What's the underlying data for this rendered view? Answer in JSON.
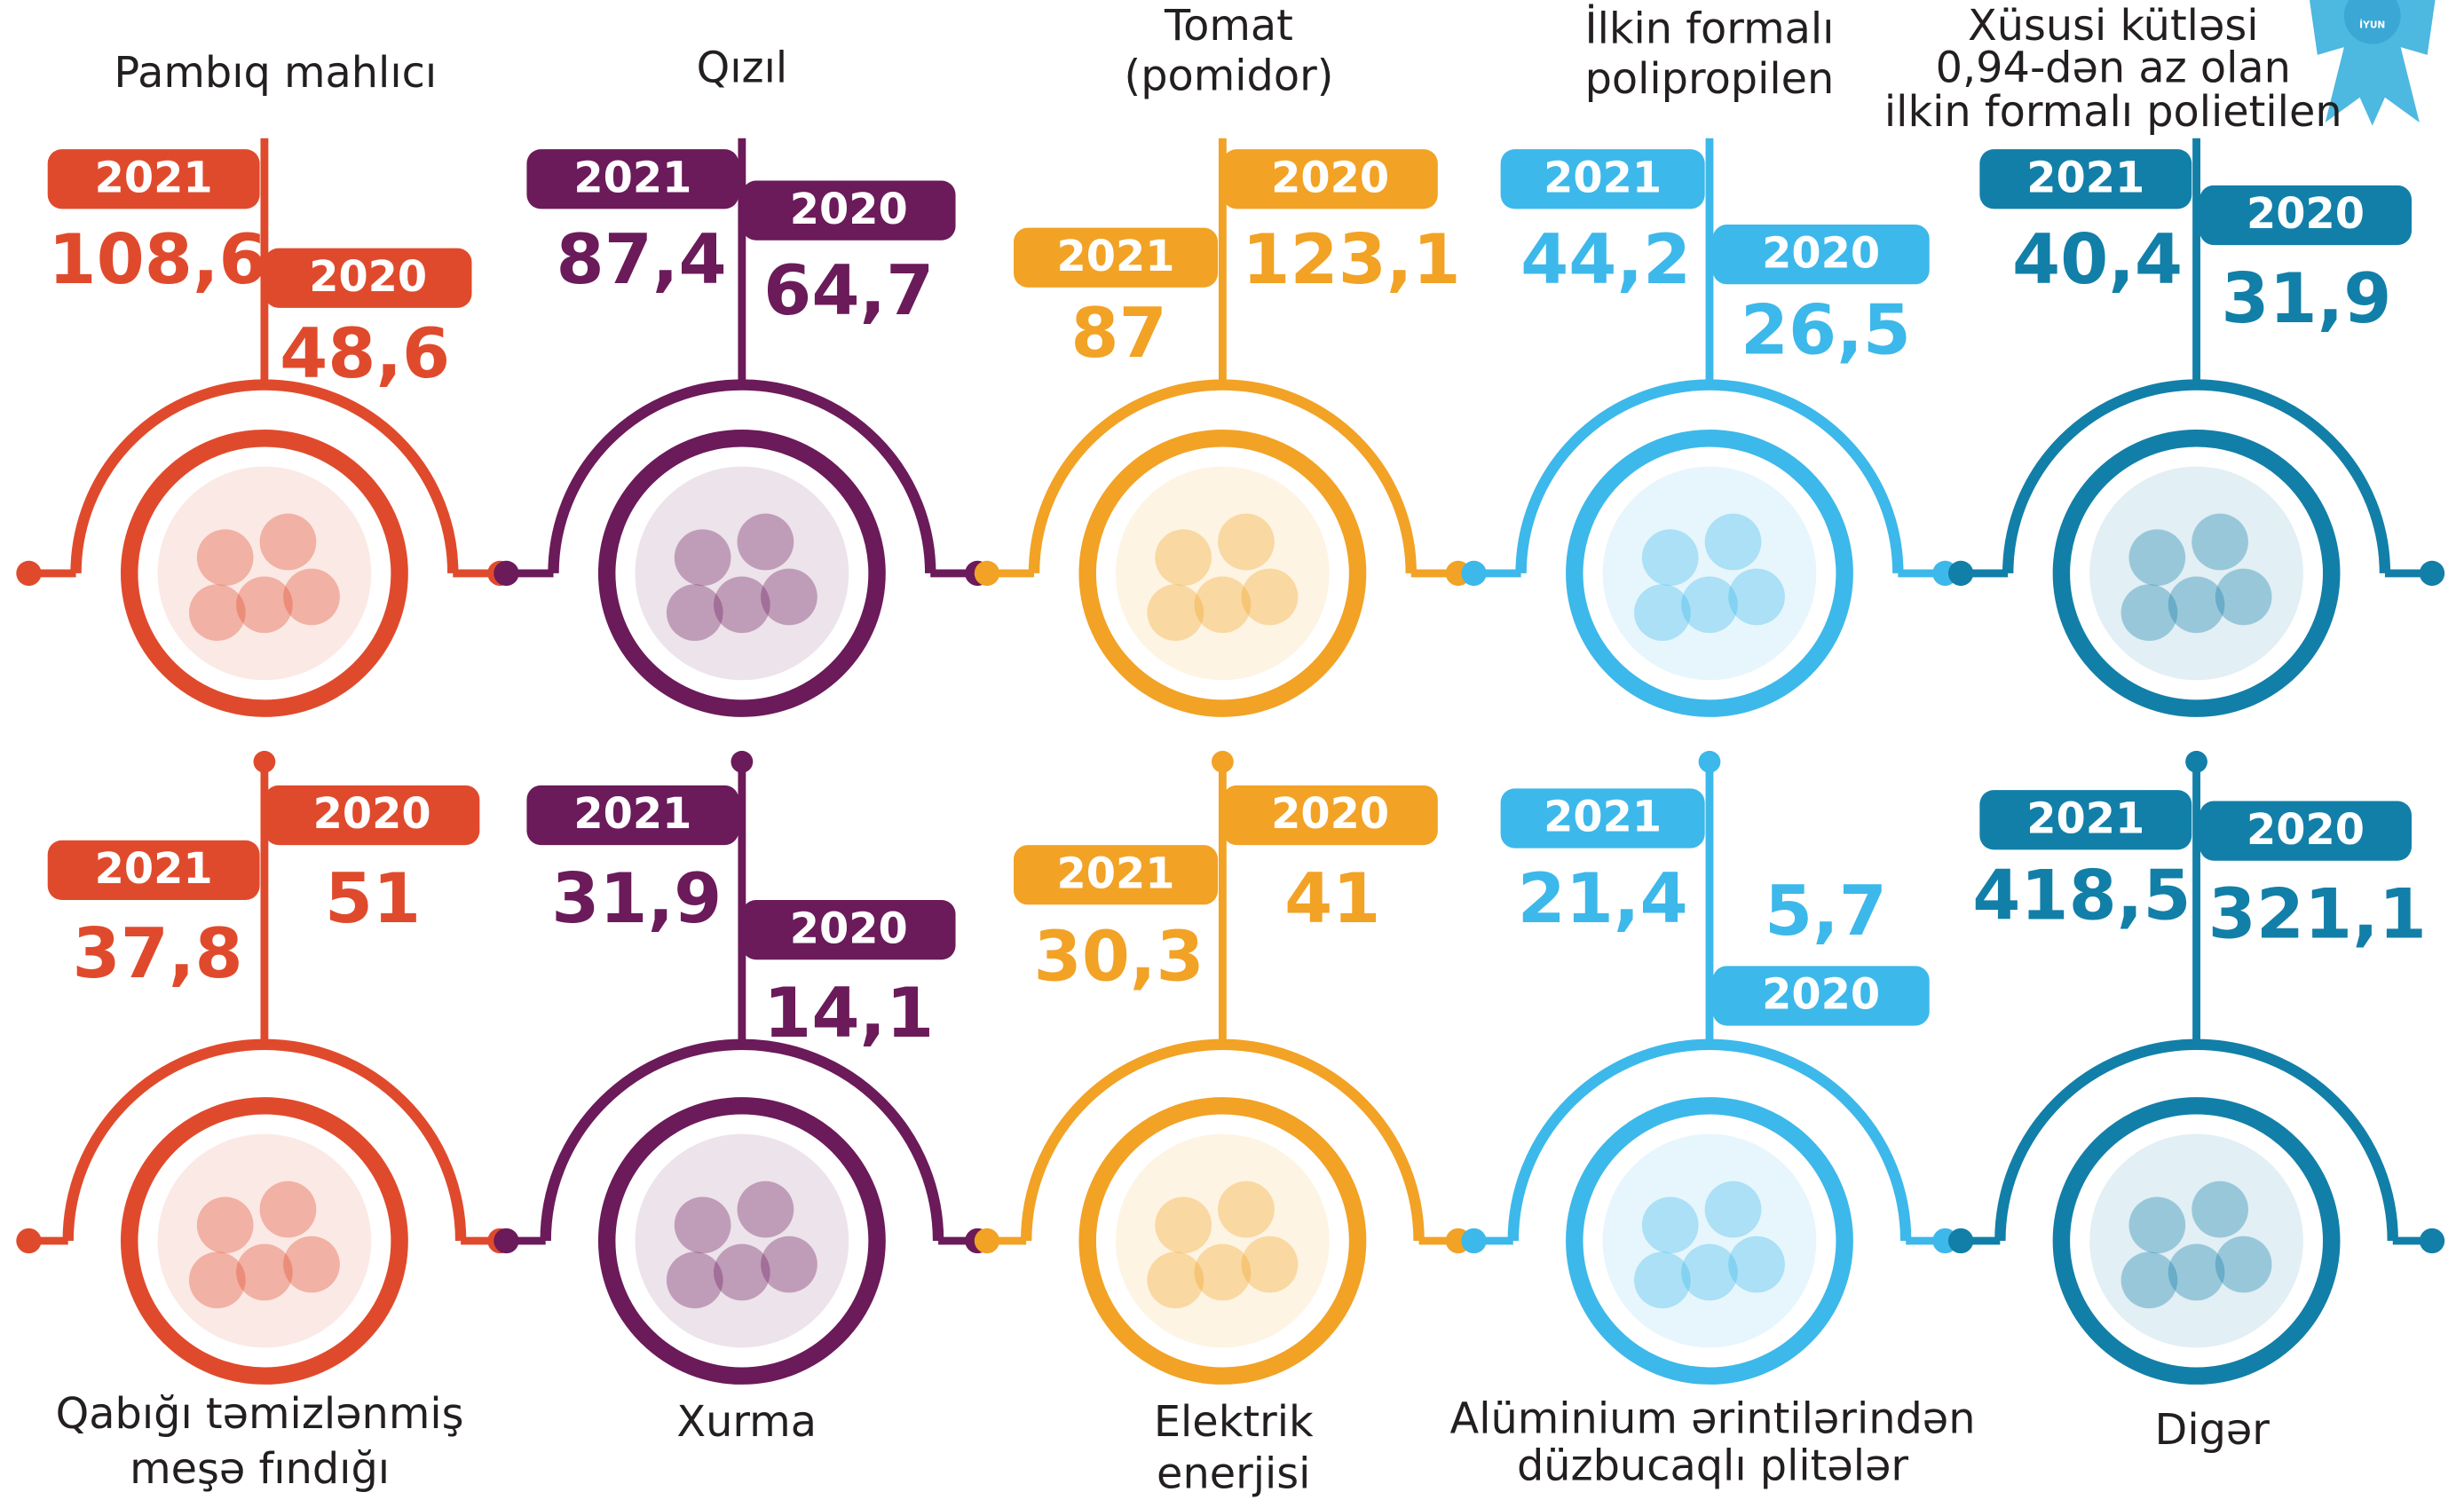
{
  "badge": "İYUN",
  "items": [
    {
      "name": [
        "Pambıq mahlıcı"
      ],
      "color": "#e04a2c",
      "entries": [
        {
          "year": "2021",
          "value": "108,6"
        },
        {
          "year": "2020",
          "value": "48,6"
        }
      ]
    },
    {
      "name": [
        "Qızıl"
      ],
      "color": "#6b1a5a",
      "entries": [
        {
          "year": "2021",
          "value": "87,4"
        },
        {
          "year": "2020",
          "value": "64,7"
        }
      ]
    },
    {
      "name": [
        "Tomat",
        "(pomidor)"
      ],
      "color": "#f2a225",
      "entries": [
        {
          "year": "2021",
          "value": "87"
        },
        {
          "year": "2020",
          "value": "123,1"
        }
      ]
    },
    {
      "name": [
        "İlkin formalı",
        "polipropilen"
      ],
      "color": "#3db8ea",
      "entries": [
        {
          "year": "2021",
          "value": "44,2"
        },
        {
          "year": "2020",
          "value": "26,5"
        }
      ]
    },
    {
      "name": [
        "Xüsusi kütləsi",
        "0,94-dən az olan",
        "ilkin formalı polietilen"
      ],
      "color": "#127fa8",
      "entries": [
        {
          "year": "2021",
          "value": "40,4"
        },
        {
          "year": "2020",
          "value": "31,9"
        }
      ]
    },
    {
      "name": [
        "Qabığı təmizlənmiş",
        "meşə fındığı"
      ],
      "color": "#e04a2c",
      "entries": [
        {
          "year": "2021",
          "value": "37,8"
        },
        {
          "year": "2020",
          "value": "51"
        }
      ]
    },
    {
      "name": [
        "Xurma"
      ],
      "color": "#6b1a5a",
      "entries": [
        {
          "year": "2021",
          "value": "31,9"
        },
        {
          "year": "2020",
          "value": "14,1"
        }
      ]
    },
    {
      "name": [
        "Elektrik",
        "enerjisi"
      ],
      "color": "#f2a225",
      "entries": [
        {
          "year": "2021",
          "value": "30,3"
        },
        {
          "year": "2020",
          "value": "41"
        }
      ]
    },
    {
      "name": [
        "Alüminium ərintilərindən",
        "düzbucaqlı plitələr"
      ],
      "color": "#3db8ea",
      "entries": [
        {
          "year": "2021",
          "value": "21,4"
        },
        {
          "year": "2020",
          "value": "5,7"
        }
      ]
    },
    {
      "name": [
        "Digər"
      ],
      "color": "#127fa8",
      "entries": [
        {
          "year": "2021",
          "value": "418,5"
        },
        {
          "year": "2020",
          "value": "321,1"
        }
      ]
    }
  ]
}
